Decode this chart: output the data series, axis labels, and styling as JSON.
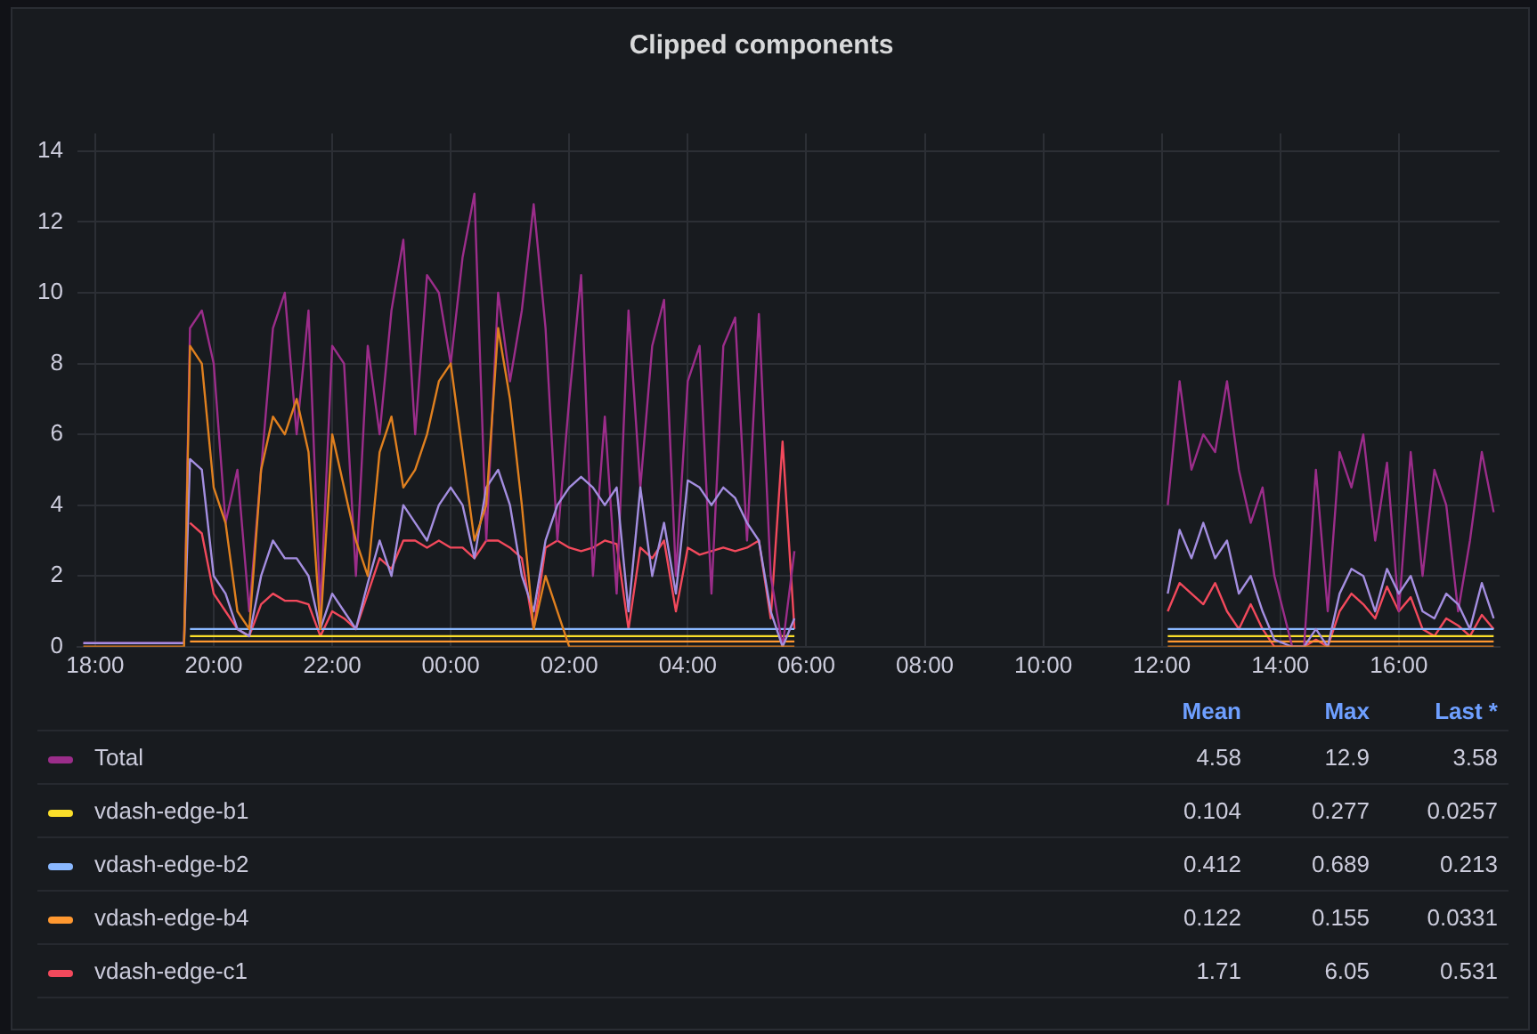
{
  "chart_data": {
    "type": "line",
    "title": "Clipped components",
    "legend": "bottom",
    "grid": true,
    "marker": "none",
    "line_style": "solid",
    "xlim": [
      "--01-01T17:42",
      "--01-02T17:42"
    ],
    "xticks": [
      {
        "value": "--01-01T18:00",
        "label": "18:00"
      },
      {
        "value": "--01-01T20:00",
        "label": "20:00"
      },
      {
        "value": "--01-01T22:00",
        "label": "22:00"
      },
      {
        "value": "--01-02T00:00",
        "label": "00:00"
      },
      {
        "value": "--01-02T02:00",
        "label": "02:00"
      },
      {
        "value": "--01-02T04:00",
        "label": "04:00"
      },
      {
        "value": "--01-02T06:00",
        "label": "06:00"
      },
      {
        "value": "--01-02T08:00",
        "label": "08:00"
      },
      {
        "value": "--01-02T10:00",
        "label": "10:00"
      },
      {
        "value": "--01-02T12:00",
        "label": "12:00"
      },
      {
        "value": "--01-02T14:00",
        "label": "14:00"
      },
      {
        "value": "--01-02T16:00",
        "label": "16:00"
      }
    ],
    "ylim": [
      0,
      14.5
    ],
    "yticks": [
      0,
      2,
      4,
      6,
      8,
      10,
      12,
      14
    ],
    "x": [
      "--01-01T17:48",
      "--01-01T18:30",
      "--01-01T19:00",
      "--01-01T19:30",
      "--01-01T19:36",
      "--01-01T19:48",
      "--01-01T20:00",
      "--01-01T20:12",
      "--01-01T20:24",
      "--01-01T20:36",
      "--01-01T20:48",
      "--01-01T21:00",
      "--01-01T21:12",
      "--01-01T21:24",
      "--01-01T21:36",
      "--01-01T21:48",
      "--01-01T22:00",
      "--01-01T22:12",
      "--01-01T22:24",
      "--01-01T22:36",
      "--01-01T22:48",
      "--01-01T23:00",
      "--01-01T23:12",
      "--01-01T23:24",
      "--01-01T23:36",
      "--01-01T23:48",
      "--01-02T00:00",
      "--01-02T00:12",
      "--01-02T00:24",
      "--01-02T00:36",
      "--01-02T00:48",
      "--01-02T01:00",
      "--01-02T01:12",
      "--01-02T01:24",
      "--01-02T01:36",
      "--01-02T01:48",
      "--01-02T02:00",
      "--01-02T02:12",
      "--01-02T02:24",
      "--01-02T02:36",
      "--01-02T02:48",
      "--01-02T03:00",
      "--01-02T03:12",
      "--01-02T03:24",
      "--01-02T03:36",
      "--01-02T03:48",
      "--01-02T04:00",
      "--01-02T04:12",
      "--01-02T04:24",
      "--01-02T04:36",
      "--01-02T04:48",
      "--01-02T05:00",
      "--01-02T05:12",
      "--01-02T05:24",
      "--01-02T05:36",
      "--01-02T05:48",
      "--01-02T06:30",
      "--01-02T12:06",
      "--01-02T12:18",
      "--01-02T12:30",
      "--01-02T12:42",
      "--01-02T12:54",
      "--01-02T13:06",
      "--01-02T13:18",
      "--01-02T13:30",
      "--01-02T13:42",
      "--01-02T13:54",
      "--01-02T14:12",
      "--01-02T14:24",
      "--01-02T14:36",
      "--01-02T14:48",
      "--01-02T15:00",
      "--01-02T15:12",
      "--01-02T15:24",
      "--01-02T15:36",
      "--01-02T15:48",
      "--01-02T16:00",
      "--01-02T16:12",
      "--01-02T16:24",
      "--01-02T16:36",
      "--01-02T16:48",
      "--01-02T17:00",
      "--01-02T17:12",
      "--01-02T17:24",
      "--01-02T17:36"
    ],
    "series": [
      {
        "color": "#e0801f",
        "x": [
          "--01-01T17:48",
          "--01-01T19:30",
          "--01-01T19:36",
          "--01-01T19:48",
          "--01-01T20:00",
          "--01-01T20:12",
          "--01-01T20:24",
          "--01-01T20:36",
          "--01-01T20:48",
          "--01-01T21:00",
          "--01-01T21:12",
          "--01-01T21:24",
          "--01-01T21:36",
          "--01-01T21:48",
          "--01-01T22:00",
          "--01-01T22:12",
          "--01-01T22:24",
          "--01-01T22:36",
          "--01-01T22:48",
          "--01-01T23:00",
          "--01-01T23:12",
          "--01-01T23:24",
          "--01-01T23:36",
          "--01-01T23:48",
          "--01-02T00:00",
          "--01-02T00:12",
          "--01-02T00:24",
          "--01-02T00:36",
          "--01-02T00:48",
          "--01-02T01:00",
          "--01-02T01:12",
          "--01-02T01:24",
          "--01-02T01:36",
          "--01-02T01:48",
          "--01-02T02:00",
          "--01-02T05:48",
          "--01-02T06:30",
          "--01-02T12:06",
          "--01-02T17:36"
        ],
        "values": [
          0,
          0,
          8.5,
          8,
          4.5,
          3.5,
          1,
          0.5,
          5,
          6.5,
          6,
          7,
          5.5,
          0.5,
          6,
          4.5,
          3,
          2,
          5.5,
          6.5,
          4.5,
          5,
          6,
          7.5,
          8,
          5.5,
          3,
          4,
          9,
          7,
          4,
          0.5,
          2,
          1,
          0,
          0,
          null,
          0,
          0
        ]
      },
      {
        "color": "#a48ee0",
        "values": [
          0.1,
          0.1,
          0.1,
          0.1,
          5.3,
          5,
          2,
          1.5,
          0.5,
          0.3,
          2,
          3,
          2.5,
          2.5,
          2,
          0.5,
          1.5,
          1,
          0.5,
          1.8,
          3,
          2,
          4,
          3.5,
          3,
          4,
          4.5,
          4,
          2.5,
          4.5,
          5,
          4,
          2,
          1,
          3,
          4,
          4.5,
          4.8,
          4.5,
          4,
          4.5,
          1,
          4.5,
          2,
          3.5,
          1.5,
          4.7,
          4.5,
          4,
          4.5,
          4.2,
          3.5,
          3,
          1,
          0,
          0.8,
          null,
          1.5,
          3.3,
          2.5,
          3.5,
          2.5,
          3,
          1.5,
          2,
          1,
          0.2,
          0,
          0,
          0.5,
          0,
          1.5,
          2.2,
          2,
          1,
          2.2,
          1.5,
          2,
          1,
          0.8,
          1.5,
          1.2,
          0.5,
          1.8,
          0.8
        ]
      },
      {
        "name": "Total",
        "color": "#9b2d8a",
        "values": [
          0.1,
          0.1,
          0.1,
          0.1,
          9,
          9.5,
          8,
          3.5,
          5,
          1,
          5,
          9,
          10,
          6,
          9.5,
          1,
          8.5,
          8,
          2,
          8.5,
          6,
          9.5,
          11.5,
          6,
          10.5,
          10,
          8,
          11,
          12.8,
          3,
          10,
          7.5,
          9.5,
          12.5,
          9,
          3,
          7,
          10.5,
          2,
          6.5,
          1.5,
          9.5,
          4.5,
          8.5,
          9.8,
          2,
          7.5,
          8.5,
          1.5,
          8.5,
          9.3,
          3,
          9.4,
          2,
          0,
          2.7,
          null,
          4,
          7.5,
          5,
          6,
          5.5,
          7.5,
          5,
          3.5,
          4.5,
          2,
          0,
          0,
          5,
          1,
          5.5,
          4.5,
          6,
          3,
          5.2,
          1,
          5.5,
          2,
          5,
          4,
          1,
          3,
          5.5,
          3.8
        ]
      },
      {
        "name": "vdash-edge-b1",
        "color": "#fade2a",
        "x": [
          "--01-01T19:36",
          "--01-02T05:48",
          "--01-02T06:30",
          "--01-02T12:06",
          "--01-02T17:36"
        ],
        "values": [
          0.3,
          0.3,
          null,
          0.3,
          0.3
        ]
      },
      {
        "name": "vdash-edge-b2",
        "color": "#8ab8ff",
        "x": [
          "--01-01T19:36",
          "--01-02T05:48",
          "--01-02T06:30",
          "--01-02T12:06",
          "--01-02T17:36"
        ],
        "values": [
          0.5,
          0.5,
          null,
          0.5,
          0.5
        ]
      },
      {
        "name": "vdash-edge-b4",
        "color": "#ff9830",
        "x": [
          "--01-01T19:36",
          "--01-02T05:48",
          "--01-02T06:30",
          "--01-02T12:06",
          "--01-02T17:36"
        ],
        "values": [
          0.15,
          0.15,
          null,
          0.15,
          0.15
        ]
      },
      {
        "name": "vdash-edge-c1",
        "color": "#f2495c",
        "values": [
          null,
          null,
          null,
          null,
          3.5,
          3.2,
          1.5,
          1,
          0.5,
          0.3,
          1.2,
          1.5,
          1.3,
          1.3,
          1.2,
          0.3,
          1,
          0.8,
          0.5,
          1.5,
          2.5,
          2.2,
          3,
          3,
          2.8,
          3,
          2.8,
          2.8,
          2.5,
          3,
          3,
          2.8,
          2.5,
          0.5,
          2.8,
          3,
          2.8,
          2.7,
          2.8,
          3,
          2.9,
          0.5,
          2.8,
          2.5,
          3,
          1,
          2.8,
          2.6,
          2.7,
          2.8,
          2.7,
          2.8,
          3,
          0.8,
          5.8,
          0.5,
          null,
          1,
          1.8,
          1.5,
          1.2,
          1.8,
          1,
          0.5,
          1.2,
          0.5,
          0,
          0,
          0,
          0.2,
          0,
          1,
          1.5,
          1.2,
          0.8,
          1.7,
          1,
          1.4,
          0.5,
          0.3,
          0.8,
          0.6,
          0.3,
          0.9,
          0.5
        ]
      }
    ],
    "annotations": [
      "Mean",
      "Max",
      "Last *",
      "4.58",
      "12.9",
      "3.58",
      "0.104",
      "0.277",
      "0.0257",
      "0.412",
      "0.689",
      "0.213",
      "0.122",
      "0.155",
      "0.0331",
      "1.71",
      "6.05",
      "0.531"
    ]
  }
}
